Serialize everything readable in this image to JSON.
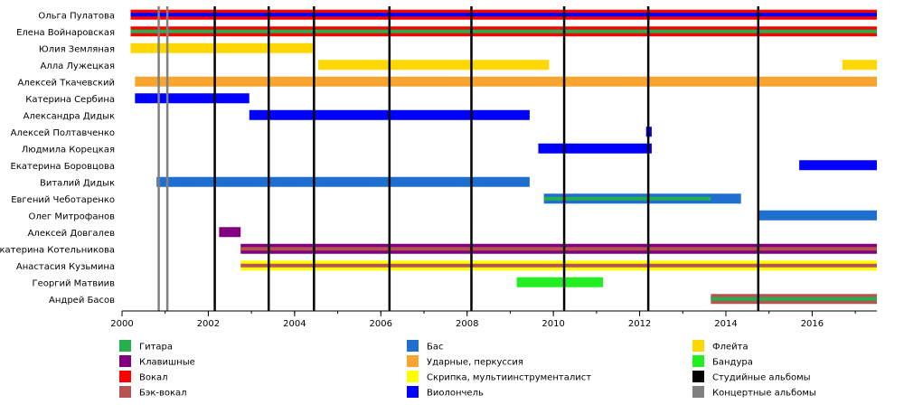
{
  "chart_data": {
    "type": "timeline",
    "xlim": [
      2000,
      2017.5
    ],
    "x_ticks": [
      "2000",
      "2002",
      "2004",
      "2006",
      "2008",
      "2010",
      "2012",
      "2014",
      "2016"
    ],
    "members": [
      "Ольга Пулатова",
      "Елена Войнаровская",
      "Юлия Земляная",
      "Алла Лужецкая",
      "Алексей Ткачевский",
      "Катерина Сербина",
      "Александра Дидык",
      "Алексей Полтавченко",
      "Людмила Корецкая",
      "Екатерина Боровцова",
      "Виталий Дидык",
      "Евгений Чеботаренко",
      "Олег Митрофанов",
      "Алексей Довгалев",
      "Екатерина Котельникова",
      "Анастасия Кузьмина",
      "Георгий Матвиив",
      "Андрей Басов"
    ],
    "roles": {
      "guitar": {
        "label": "Гитара",
        "color": "#22b14c"
      },
      "keys": {
        "label": "Клавишные",
        "color": "#800080"
      },
      "vocals": {
        "label": "Вокал",
        "color": "#ff0000"
      },
      "backing": {
        "label": "Бэк-вокал",
        "color": "#b85450"
      },
      "bass": {
        "label": "Бас",
        "color": "#1f6fd0"
      },
      "drums": {
        "label": "Ударные, перкуссия",
        "color": "#f7a530"
      },
      "violin": {
        "label": "Скрипка, мультиинструменталист",
        "color": "#ffff00"
      },
      "cello": {
        "label": "Виолончель",
        "color": "#0000ff"
      },
      "flute": {
        "label": "Флейта",
        "color": "#ffd700"
      },
      "bandura": {
        "label": "Бандура",
        "color": "#22ee22"
      },
      "studio": {
        "label": "Студийные альбомы",
        "color": "#000000"
      },
      "live": {
        "label": "Концертные альбомы",
        "color": "#808080"
      }
    },
    "legend_order": [
      [
        "guitar",
        "keys",
        "vocals",
        "backing"
      ],
      [
        "bass",
        "drums",
        "violin",
        "cello"
      ],
      [
        "flute",
        "bandura",
        "studio",
        "live"
      ]
    ],
    "bars": [
      {
        "member": 0,
        "start": 2000.2,
        "end": 2017.5,
        "role": "vocals"
      },
      {
        "member": 0,
        "start": 2000.2,
        "end": 2017.5,
        "role": "cello",
        "overlay": true
      },
      {
        "member": 1,
        "start": 2000.2,
        "end": 2017.5,
        "role": "vocals"
      },
      {
        "member": 1,
        "start": 2000.2,
        "end": 2017.5,
        "role": "guitar",
        "overlay": true
      },
      {
        "member": 2,
        "start": 2000.2,
        "end": 2004.45,
        "role": "flute"
      },
      {
        "member": 3,
        "start": 2004.55,
        "end": 2009.9,
        "role": "flute"
      },
      {
        "member": 3,
        "start": 2016.7,
        "end": 2017.5,
        "role": "flute"
      },
      {
        "member": 4,
        "start": 2000.3,
        "end": 2017.5,
        "role": "drums"
      },
      {
        "member": 5,
        "start": 2000.3,
        "end": 2002.95,
        "role": "cello"
      },
      {
        "member": 6,
        "start": 2002.95,
        "end": 2009.45,
        "role": "cello"
      },
      {
        "member": 7,
        "start": 2012.15,
        "end": 2012.28,
        "role": "cello"
      },
      {
        "member": 8,
        "start": 2009.65,
        "end": 2012.28,
        "role": "cello"
      },
      {
        "member": 9,
        "start": 2015.7,
        "end": 2017.5,
        "role": "cello"
      },
      {
        "member": 10,
        "start": 2000.8,
        "end": 2009.45,
        "role": "bass"
      },
      {
        "member": 11,
        "start": 2009.78,
        "end": 2014.35,
        "role": "bass"
      },
      {
        "member": 11,
        "start": 2009.78,
        "end": 2013.65,
        "role": "guitar",
        "overlay": true
      },
      {
        "member": 12,
        "start": 2014.75,
        "end": 2017.5,
        "role": "bass"
      },
      {
        "member": 13,
        "start": 2002.25,
        "end": 2002.75,
        "role": "keys"
      },
      {
        "member": 14,
        "start": 2002.75,
        "end": 2017.5,
        "role": "keys"
      },
      {
        "member": 14,
        "start": 2002.75,
        "end": 2017.5,
        "role": "backing",
        "overlay": true
      },
      {
        "member": 15,
        "start": 2002.75,
        "end": 2017.5,
        "role": "violin"
      },
      {
        "member": 15,
        "start": 2002.75,
        "end": 2017.5,
        "role": "backing",
        "overlay": true
      },
      {
        "member": 16,
        "start": 2009.15,
        "end": 2011.15,
        "role": "bandura"
      },
      {
        "member": 17,
        "start": 2013.65,
        "end": 2017.5,
        "role": "backing"
      },
      {
        "member": 17,
        "start": 2013.65,
        "end": 2017.5,
        "role": "guitar",
        "overlay": true
      }
    ],
    "studio_albums": [
      2002.15,
      2003.4,
      2004.45,
      2006.2,
      2008.1,
      2010.25,
      2012.2,
      2014.75
    ],
    "live_albums": [
      2000.85,
      2001.05
    ]
  }
}
